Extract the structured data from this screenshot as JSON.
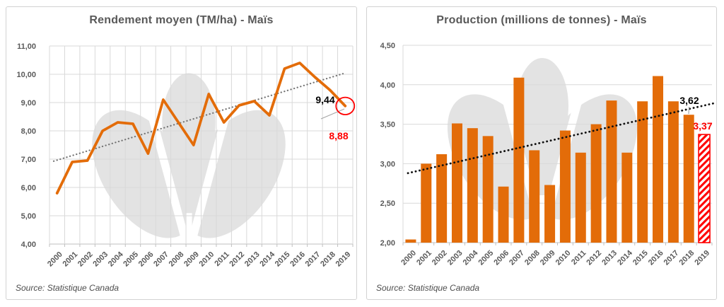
{
  "colors": {
    "accent_orange": "#E36C09",
    "highlight_red": "#FF0000",
    "title_gray": "#595959",
    "grid_gray": "#D9D9D9",
    "axis_line_gray": "#BFBFBF",
    "leader_gray": "#A6A6A6",
    "watermark_gray": "#E3E3E3",
    "panel_border": "#D2D2D2"
  },
  "chart_data": [
    {
      "type": "line",
      "title": "Rendement moyen (TM/ha) - Maïs",
      "source": "Source: Statistique Canada",
      "categories": [
        "2000",
        "2001",
        "2002",
        "2003",
        "2004",
        "2005",
        "2006",
        "2007",
        "2008",
        "2009",
        "2010",
        "2011",
        "2012",
        "2013",
        "2014",
        "2015",
        "2016",
        "2017",
        "2018",
        "2019"
      ],
      "values": [
        5.8,
        6.9,
        6.95,
        8.0,
        8.3,
        8.25,
        7.2,
        9.1,
        8.3,
        7.5,
        9.3,
        8.3,
        8.9,
        9.05,
        8.55,
        10.2,
        10.4,
        9.9,
        9.44,
        8.88
      ],
      "ylim": [
        4.0,
        11.0
      ],
      "ytick_labels": [
        "11,00",
        "10,00",
        "9,00",
        "8,00",
        "7,00",
        "6,00",
        "5,00",
        "4,00"
      ],
      "grid": "horizontal+vertical",
      "xlabel_rotation": 45,
      "legend": "none",
      "line_color": "#E36C09",
      "trendline": {
        "type": "linear",
        "style": "dotted",
        "color": "#757575",
        "start_value": 6.93,
        "end_value": 10.02
      },
      "annotations": [
        {
          "year": "2018",
          "text": "9,44",
          "color": "#000000"
        },
        {
          "year": "2019",
          "text": "8,88",
          "color": "#FF0000",
          "circled": true,
          "circle_color": "#FF0000",
          "leader_color": "#A6A6A6"
        }
      ],
      "watermark_icon": "wheat-plant-watermark"
    },
    {
      "type": "bar",
      "title": "Production (millions de tonnes) - Maïs",
      "source": "Source: Statistique Canada",
      "categories": [
        "2000",
        "2001",
        "2002",
        "2003",
        "2004",
        "2005",
        "2006",
        "2007",
        "2008",
        "2009",
        "2010",
        "2011",
        "2012",
        "2013",
        "2014",
        "2015",
        "2016",
        "2017",
        "2018",
        "2019"
      ],
      "values": [
        2.04,
        3.0,
        3.12,
        3.51,
        3.45,
        3.35,
        2.71,
        4.09,
        3.17,
        2.73,
        3.42,
        3.14,
        3.5,
        3.8,
        3.14,
        3.79,
        4.11,
        3.79,
        3.62,
        3.37
      ],
      "ylim": [
        2.0,
        4.5
      ],
      "ytick_labels": [
        "4,50",
        "4,00",
        "3,50",
        "3,00",
        "2,50",
        "2,00"
      ],
      "grid": "horizontal",
      "xlabel_rotation": 45,
      "legend": "none",
      "bar_color": "#E36C09",
      "highlight_last_bar": {
        "year": "2019",
        "fill": "#FFFFFF",
        "hatch_color": "#FF0000",
        "border_color": "#FF0000",
        "pattern": "diagonal-stripes"
      },
      "trendline": {
        "type": "linear",
        "style": "dotted",
        "color": "#111111",
        "start_value": 2.88,
        "end_value": 3.77
      },
      "annotations": [
        {
          "year": "2018",
          "text": "3,62",
          "color": "#000000",
          "leader_color": "#A6A6A6"
        },
        {
          "year": "2019",
          "text": "3,37",
          "color": "#FF0000"
        }
      ],
      "watermark_icon": "wheat-plant-watermark"
    }
  ]
}
